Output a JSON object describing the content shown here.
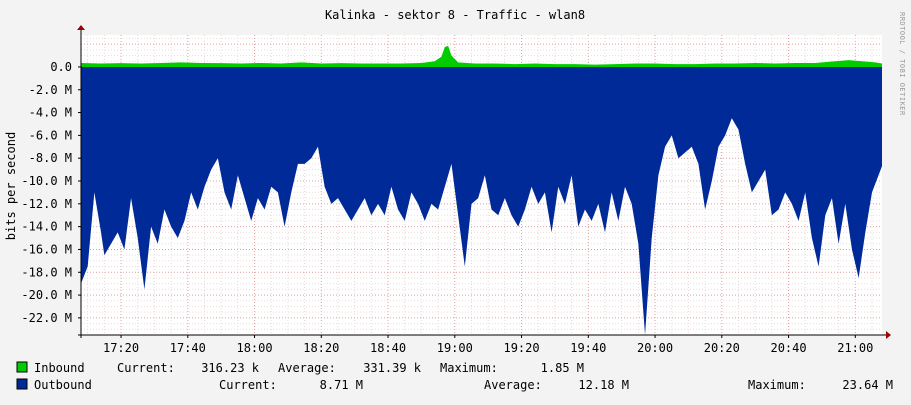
{
  "chart_data": {
    "type": "area",
    "title": "Kalinka - sektor 8 - Traffic - wlan8",
    "ylabel": "bits per second",
    "side_text": "RRDTOOL / TOBI OETIKER",
    "x_ticks": [
      "17:20",
      "17:40",
      "18:00",
      "18:20",
      "18:40",
      "19:00",
      "19:20",
      "19:40",
      "20:00",
      "20:20",
      "20:40",
      "21:00"
    ],
    "y_ticks": [
      "0.0",
      "-2.0 M",
      "-4.0 M",
      "-6.0 M",
      "-8.0 M",
      "-10.0 M",
      "-12.0 M",
      "-14.0 M",
      "-16.0 M",
      "-18.0 M",
      "-20.0 M",
      "-22.0 M"
    ],
    "y_tick_values": [
      0,
      -2,
      -4,
      -6,
      -8,
      -10,
      -12,
      -14,
      -16,
      -18,
      -20,
      -22
    ],
    "x_range_minutes": [
      1028,
      1268
    ],
    "y_range_M": [
      -23.5,
      2.8
    ],
    "grid": true,
    "units": "M bits/s",
    "series": [
      {
        "name": "Inbound",
        "color": "#00cc00",
        "current": "316.23 k",
        "average": "331.39 k",
        "maximum": "1.85 M",
        "points": [
          [
            1028,
            0.35
          ],
          [
            1034,
            0.3
          ],
          [
            1040,
            0.33
          ],
          [
            1046,
            0.3
          ],
          [
            1052,
            0.35
          ],
          [
            1058,
            0.4
          ],
          [
            1064,
            0.35
          ],
          [
            1070,
            0.33
          ],
          [
            1076,
            0.3
          ],
          [
            1082,
            0.35
          ],
          [
            1088,
            0.3
          ],
          [
            1094,
            0.4
          ],
          [
            1100,
            0.3
          ],
          [
            1106,
            0.33
          ],
          [
            1112,
            0.3
          ],
          [
            1118,
            0.3
          ],
          [
            1124,
            0.3
          ],
          [
            1130,
            0.35
          ],
          [
            1134,
            0.5
          ],
          [
            1136,
            0.9
          ],
          [
            1137,
            1.75
          ],
          [
            1138,
            1.85
          ],
          [
            1139,
            1.0
          ],
          [
            1141,
            0.4
          ],
          [
            1146,
            0.3
          ],
          [
            1152,
            0.3
          ],
          [
            1158,
            0.25
          ],
          [
            1164,
            0.3
          ],
          [
            1170,
            0.25
          ],
          [
            1176,
            0.25
          ],
          [
            1182,
            0.2
          ],
          [
            1188,
            0.25
          ],
          [
            1194,
            0.3
          ],
          [
            1200,
            0.3
          ],
          [
            1206,
            0.25
          ],
          [
            1212,
            0.25
          ],
          [
            1218,
            0.3
          ],
          [
            1224,
            0.3
          ],
          [
            1230,
            0.35
          ],
          [
            1236,
            0.3
          ],
          [
            1242,
            0.35
          ],
          [
            1248,
            0.35
          ],
          [
            1254,
            0.5
          ],
          [
            1258,
            0.6
          ],
          [
            1262,
            0.5
          ],
          [
            1266,
            0.4
          ],
          [
            1268,
            0.3
          ]
        ]
      },
      {
        "name": "Outbound",
        "color": "#002a97",
        "current": "8.71 M",
        "average": "12.18 M",
        "maximum": "23.64 M",
        "points": [
          [
            1028,
            -19.0
          ],
          [
            1030,
            -17.5
          ],
          [
            1032,
            -11.0
          ],
          [
            1034,
            -14.5
          ],
          [
            1035,
            -16.5
          ],
          [
            1037,
            -15.5
          ],
          [
            1039,
            -14.5
          ],
          [
            1041,
            -16.0
          ],
          [
            1043,
            -11.5
          ],
          [
            1045,
            -15.0
          ],
          [
            1047,
            -19.5
          ],
          [
            1049,
            -14.0
          ],
          [
            1051,
            -15.5
          ],
          [
            1053,
            -12.5
          ],
          [
            1055,
            -14.0
          ],
          [
            1057,
            -15.0
          ],
          [
            1059,
            -13.5
          ],
          [
            1061,
            -11.0
          ],
          [
            1063,
            -12.5
          ],
          [
            1065,
            -10.5
          ],
          [
            1067,
            -9.0
          ],
          [
            1069,
            -8.0
          ],
          [
            1071,
            -11.0
          ],
          [
            1073,
            -12.5
          ],
          [
            1075,
            -9.5
          ],
          [
            1077,
            -11.5
          ],
          [
            1079,
            -13.5
          ],
          [
            1081,
            -11.5
          ],
          [
            1083,
            -12.5
          ],
          [
            1085,
            -10.5
          ],
          [
            1087,
            -11.0
          ],
          [
            1089,
            -14.0
          ],
          [
            1091,
            -11.0
          ],
          [
            1093,
            -8.5
          ],
          [
            1095,
            -8.5
          ],
          [
            1097,
            -8.0
          ],
          [
            1099,
            -7.0
          ],
          [
            1101,
            -10.5
          ],
          [
            1103,
            -12.0
          ],
          [
            1105,
            -11.5
          ],
          [
            1107,
            -12.5
          ],
          [
            1109,
            -13.5
          ],
          [
            1111,
            -12.5
          ],
          [
            1113,
            -11.5
          ],
          [
            1115,
            -13.0
          ],
          [
            1117,
            -12.0
          ],
          [
            1119,
            -13.0
          ],
          [
            1121,
            -10.5
          ],
          [
            1123,
            -12.5
          ],
          [
            1125,
            -13.5
          ],
          [
            1127,
            -11.0
          ],
          [
            1129,
            -12.0
          ],
          [
            1131,
            -13.5
          ],
          [
            1133,
            -12.0
          ],
          [
            1135,
            -12.5
          ],
          [
            1137,
            -10.5
          ],
          [
            1139,
            -8.5
          ],
          [
            1141,
            -13.0
          ],
          [
            1143,
            -17.5
          ],
          [
            1145,
            -12.0
          ],
          [
            1147,
            -11.5
          ],
          [
            1149,
            -9.5
          ],
          [
            1151,
            -12.5
          ],
          [
            1153,
            -13.0
          ],
          [
            1155,
            -11.5
          ],
          [
            1157,
            -13.0
          ],
          [
            1159,
            -14.0
          ],
          [
            1161,
            -12.5
          ],
          [
            1163,
            -10.5
          ],
          [
            1165,
            -12.0
          ],
          [
            1167,
            -11.0
          ],
          [
            1169,
            -14.5
          ],
          [
            1171,
            -10.5
          ],
          [
            1173,
            -12.0
          ],
          [
            1175,
            -9.5
          ],
          [
            1177,
            -14.0
          ],
          [
            1179,
            -12.5
          ],
          [
            1181,
            -13.5
          ],
          [
            1183,
            -12.0
          ],
          [
            1185,
            -14.5
          ],
          [
            1187,
            -11.0
          ],
          [
            1189,
            -13.5
          ],
          [
            1191,
            -10.5
          ],
          [
            1193,
            -12.0
          ],
          [
            1195,
            -15.5
          ],
          [
            1197,
            -23.5
          ],
          [
            1199,
            -15.0
          ],
          [
            1201,
            -9.5
          ],
          [
            1203,
            -7.0
          ],
          [
            1205,
            -6.0
          ],
          [
            1207,
            -8.0
          ],
          [
            1209,
            -7.5
          ],
          [
            1211,
            -7.0
          ],
          [
            1213,
            -8.5
          ],
          [
            1215,
            -12.5
          ],
          [
            1217,
            -10.0
          ],
          [
            1219,
            -7.0
          ],
          [
            1221,
            -6.0
          ],
          [
            1223,
            -4.5
          ],
          [
            1225,
            -5.5
          ],
          [
            1227,
            -8.5
          ],
          [
            1229,
            -11.0
          ],
          [
            1231,
            -10.0
          ],
          [
            1233,
            -9.0
          ],
          [
            1235,
            -13.0
          ],
          [
            1237,
            -12.5
          ],
          [
            1239,
            -11.0
          ],
          [
            1241,
            -12.0
          ],
          [
            1243,
            -13.5
          ],
          [
            1245,
            -11.0
          ],
          [
            1247,
            -15.0
          ],
          [
            1249,
            -17.5
          ],
          [
            1251,
            -13.0
          ],
          [
            1253,
            -11.5
          ],
          [
            1255,
            -15.5
          ],
          [
            1257,
            -12.0
          ],
          [
            1259,
            -16.0
          ],
          [
            1261,
            -18.5
          ],
          [
            1263,
            -14.5
          ],
          [
            1265,
            -11.0
          ],
          [
            1268,
            -8.7
          ]
        ]
      }
    ]
  },
  "legend": {
    "current_label": "Current:",
    "average_label": "Average:",
    "maximum_label": "Maximum:"
  }
}
